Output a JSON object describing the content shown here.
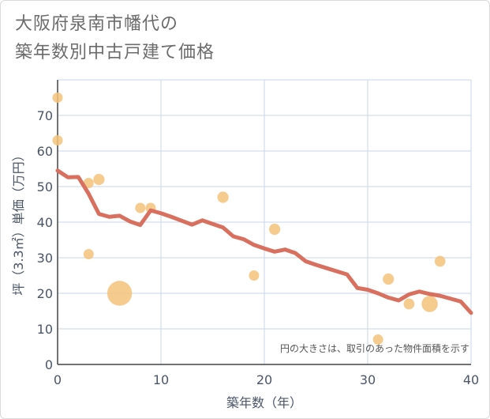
{
  "title": {
    "line1": "大阪府泉南市幡代の",
    "line2": "築年数別中古戸建て価格"
  },
  "chart_data": {
    "type": "scatter+line",
    "title": "大阪府泉南市幡代の築年数別中古戸建て価格",
    "xlabel": "築年数（年）",
    "ylabel": "坪（3.3㎡）単価（万円）",
    "xlim": [
      0,
      40
    ],
    "ylim": [
      0,
      80
    ],
    "xticks": [
      0,
      10,
      20,
      30,
      40
    ],
    "yticks": [
      0,
      10,
      20,
      30,
      40,
      50,
      60,
      70
    ],
    "grid": true,
    "note": "円の大きさは、取引のあった物件面積を示す",
    "colors": {
      "line": "#d9705f",
      "bubble": "#f5c27a",
      "grid": "#c9d6e8"
    },
    "scatter": [
      {
        "x": 0,
        "y": 75,
        "size": 1
      },
      {
        "x": 0,
        "y": 63,
        "size": 1
      },
      {
        "x": 3,
        "y": 51,
        "size": 1
      },
      {
        "x": 4,
        "y": 52,
        "size": 1.2
      },
      {
        "x": 3,
        "y": 31,
        "size": 1
      },
      {
        "x": 6,
        "y": 20,
        "size": 5
      },
      {
        "x": 8,
        "y": 44,
        "size": 1
      },
      {
        "x": 9,
        "y": 44,
        "size": 1
      },
      {
        "x": 16,
        "y": 47,
        "size": 1.2
      },
      {
        "x": 19,
        "y": 25,
        "size": 1
      },
      {
        "x": 21,
        "y": 38,
        "size": 1.2
      },
      {
        "x": 31,
        "y": 7,
        "size": 1
      },
      {
        "x": 32,
        "y": 24,
        "size": 1.2
      },
      {
        "x": 34,
        "y": 17,
        "size": 1.1
      },
      {
        "x": 36,
        "y": 17,
        "size": 2.5
      },
      {
        "x": 37,
        "y": 29,
        "size": 1.1
      }
    ],
    "line": {
      "x": [
        0,
        1,
        2,
        3,
        4,
        5,
        6,
        7,
        8,
        9,
        10,
        11,
        12,
        13,
        14,
        15,
        16,
        17,
        18,
        19,
        20,
        21,
        22,
        23,
        24,
        25,
        26,
        27,
        28,
        29,
        30,
        31,
        32,
        33,
        34,
        35,
        36,
        37,
        38,
        39,
        40
      ],
      "y": [
        54.5,
        52.6,
        52.7,
        48.0,
        42.3,
        41.5,
        41.8,
        40.2,
        39.2,
        43.3,
        42.5,
        41.5,
        40.4,
        39.3,
        40.5,
        39.5,
        38.5,
        36.0,
        35.2,
        33.6,
        32.6,
        31.7,
        32.3,
        31.3,
        29.0,
        28.0,
        27.1,
        26.2,
        25.3,
        21.5,
        21.0,
        20.0,
        18.8,
        18.0,
        19.7,
        20.5,
        19.8,
        19.3,
        18.5,
        17.7,
        14.5
      ]
    }
  }
}
